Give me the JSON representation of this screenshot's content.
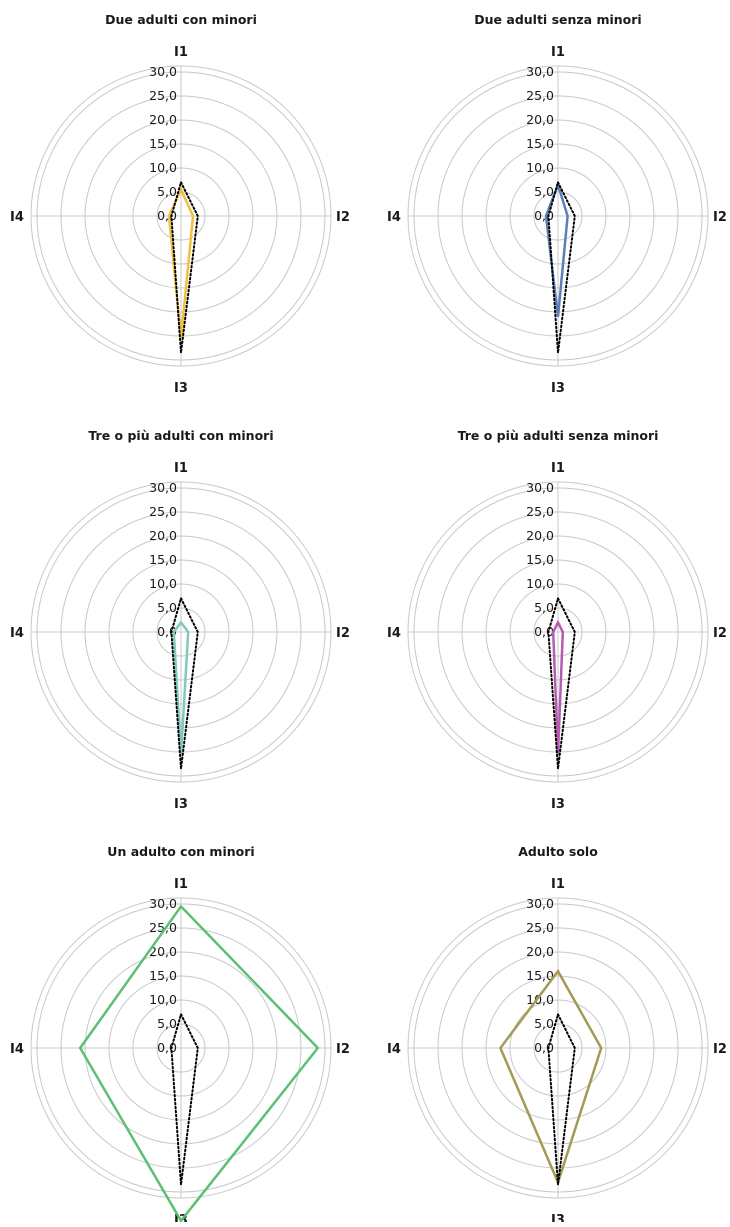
{
  "chart_data": [
    {
      "type": "radar",
      "title": "Due adulti con minori",
      "axes": [
        "I1",
        "I2",
        "I3",
        "I4"
      ],
      "rlim": [
        0,
        30
      ],
      "ticks": [
        "0,0",
        "5,0",
        "10,0",
        "15,0",
        "20,0",
        "25,0",
        "30,0"
      ],
      "series": [
        {
          "values": [
            5.5,
            2.5,
            25.5,
            2.5
          ],
          "color": "#f0c040",
          "style": "solid"
        },
        {
          "values": [
            7.0,
            3.5,
            28.5,
            2.0
          ],
          "color": "#000000",
          "style": "dotted"
        }
      ]
    },
    {
      "type": "radar",
      "title": "Due adulti senza minori",
      "axes": [
        "I1",
        "I2",
        "I3",
        "I4"
      ],
      "rlim": [
        0,
        30
      ],
      "ticks": [
        "0,0",
        "5,0",
        "10,0",
        "15,0",
        "20,0",
        "25,0",
        "30,0"
      ],
      "series": [
        {
          "values": [
            6.5,
            2.0,
            21.0,
            2.5
          ],
          "color": "#5b7fb5",
          "style": "solid"
        },
        {
          "values": [
            7.0,
            3.5,
            28.5,
            2.0
          ],
          "color": "#000000",
          "style": "dotted"
        }
      ]
    },
    {
      "type": "radar",
      "title": "Tre o più adulti con minori",
      "axes": [
        "I1",
        "I2",
        "I3",
        "I4"
      ],
      "rlim": [
        0,
        30
      ],
      "ticks": [
        "0,0",
        "5,0",
        "10,0",
        "15,0",
        "20,0",
        "25,0",
        "30,0"
      ],
      "series": [
        {
          "values": [
            2.0,
            1.5,
            25.5,
            1.5
          ],
          "color": "#7fcabd",
          "style": "solid"
        },
        {
          "values": [
            7.0,
            3.5,
            28.5,
            2.0
          ],
          "color": "#000000",
          "style": "dotted"
        }
      ]
    },
    {
      "type": "radar",
      "title": "Tre o più adulti senza minori",
      "axes": [
        "I1",
        "I2",
        "I3",
        "I4"
      ],
      "rlim": [
        0,
        30
      ],
      "ticks": [
        "0,0",
        "5,0",
        "10,0",
        "15,0",
        "20,0",
        "25,0",
        "30,0"
      ],
      "series": [
        {
          "values": [
            2.0,
            1.0,
            25.5,
            1.0
          ],
          "color": "#b65cb0",
          "style": "solid"
        },
        {
          "values": [
            7.0,
            3.5,
            28.5,
            2.0
          ],
          "color": "#000000",
          "style": "dotted"
        }
      ]
    },
    {
      "type": "radar",
      "title": "Un adulto con minori",
      "axes": [
        "I1",
        "I2",
        "I3",
        "I4"
      ],
      "rlim": [
        0,
        30
      ],
      "ticks": [
        "0,0",
        "5,0",
        "10,0",
        "15,0",
        "20,0",
        "25,0",
        "30,0"
      ],
      "series": [
        {
          "values": [
            29.5,
            28.5,
            36.0,
            21.0
          ],
          "color": "#5cbf72",
          "style": "solid"
        },
        {
          "values": [
            7.0,
            3.5,
            28.5,
            2.0
          ],
          "color": "#000000",
          "style": "dotted"
        }
      ]
    },
    {
      "type": "radar",
      "title": "Adulto solo",
      "axes": [
        "I1",
        "I2",
        "I3",
        "I4"
      ],
      "rlim": [
        0,
        30
      ],
      "ticks": [
        "0,0",
        "5,0",
        "10,0",
        "15,0",
        "20,0",
        "25,0",
        "30,0"
      ],
      "series": [
        {
          "values": [
            16.0,
            9.0,
            28.0,
            12.0
          ],
          "color": "#a39a55",
          "style": "solid"
        },
        {
          "values": [
            7.0,
            3.5,
            28.5,
            2.0
          ],
          "color": "#000000",
          "style": "dotted"
        }
      ]
    }
  ]
}
